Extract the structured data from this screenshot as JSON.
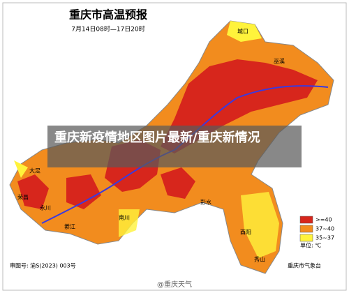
{
  "header": {
    "title": "重庆市高温预报",
    "subtitle": "7月14日08时—17日20时"
  },
  "caption": "重庆新疫情地区图片最新/重庆新情况",
  "legend": {
    "items": [
      {
        "label": ">=40",
        "color": "#d7261c"
      },
      {
        "label": "37~40",
        "color": "#f28c1e"
      },
      {
        "label": "35~37",
        "color": "#fff33b"
      }
    ],
    "unit": "单位: ℃"
  },
  "places": [
    "城口",
    "巫溪",
    "大足",
    "荣昌",
    "永川",
    "綦江",
    "南川",
    "彭水",
    "酉阳",
    "秀山"
  ],
  "footer": {
    "approval": "审图号: 渝S(2023) 003号",
    "issuer": "重庆市气象台",
    "watermark": "@重庆天气"
  }
}
